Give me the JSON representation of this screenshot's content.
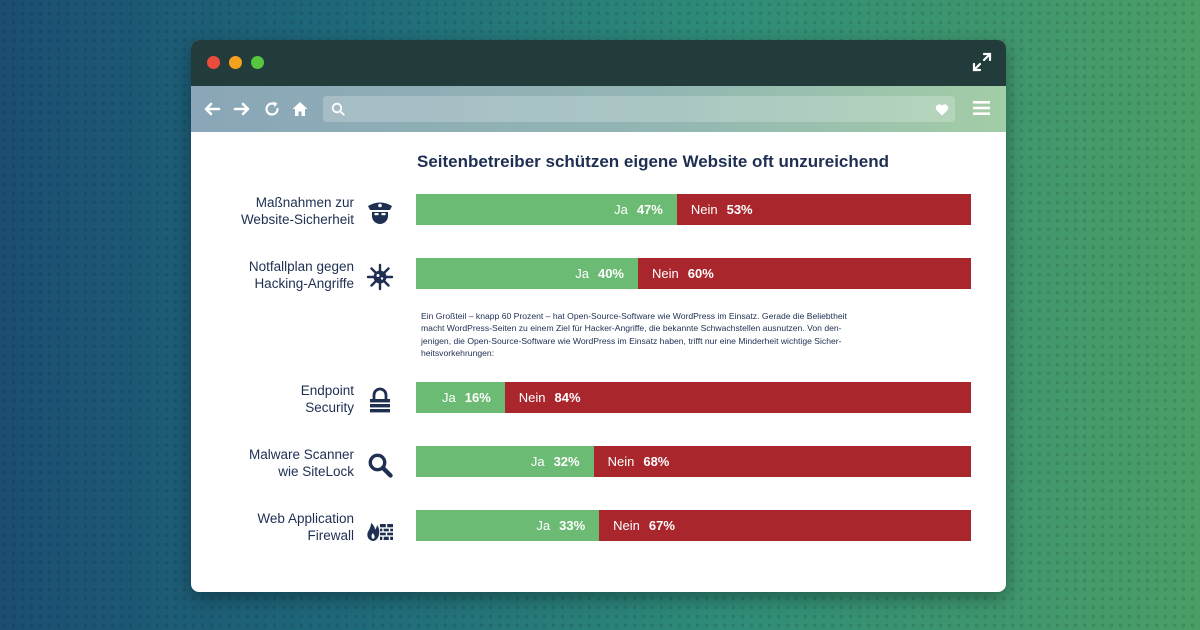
{
  "chart_data": {
    "type": "bar",
    "title": "Seitenbetreiber schützen eigene Website oft unzureichend",
    "categories": [
      "Maßnahmen zur Website-Sicherheit",
      "Notfallplan gegen Hacking-Angriffe",
      "Endpoint Security",
      "Malware Scanner wie SiteLock",
      "Web Application Firewall"
    ],
    "series": [
      {
        "name": "Ja",
        "values": [
          47,
          40,
          16,
          32,
          33
        ],
        "color": "#6cbb74"
      },
      {
        "name": "Nein",
        "values": [
          53,
          60,
          84,
          68,
          67
        ],
        "color": "#a9262d"
      }
    ],
    "unit": "%"
  },
  "rows": [
    {
      "label_1": "Maßnahmen zur",
      "label_2": "Website-Sicherheit",
      "icon": "police-officer-icon",
      "ja_label": "Ja",
      "ja_pct": "47%",
      "nein_label": "Nein",
      "nein_pct": "53%"
    },
    {
      "label_1": "Notfallplan gegen",
      "label_2": "Hacking-Angriffe",
      "icon": "virus-icon",
      "ja_label": "Ja",
      "ja_pct": "40%",
      "nein_label": "Nein",
      "nein_pct": "60%"
    },
    {
      "label_1": "Endpoint",
      "label_2": "Security",
      "icon": "padlock-icon",
      "ja_label": "Ja",
      "ja_pct": "16%",
      "nein_label": "Nein",
      "nein_pct": "84%"
    },
    {
      "label_1": "Malware Scanner",
      "label_2": "wie SiteLock",
      "icon": "magnifier-icon",
      "ja_label": "Ja",
      "ja_pct": "32%",
      "nein_label": "Nein",
      "nein_pct": "68%"
    },
    {
      "label_1": "Web Application",
      "label_2": "Firewall",
      "icon": "firewall-icon",
      "ja_label": "Ja",
      "ja_pct": "33%",
      "nein_label": "Nein",
      "nein_pct": "67%"
    }
  ],
  "note": {
    "line_1": "Ein Großteil – knapp 60 Prozent – hat Open-Source-Software wie WordPress im Einsatz. Gerade die Beliebtheit",
    "line_2": "macht WordPress-Seiten zu einem Ziel für Hacker-Angriffe, die bekannte Schwachstellen ausnutzen. Von den-",
    "line_3": "jenigen, die Open-Source-Software wie WordPress im Einsatz haben, trifft nur eine Minderheit wichtige Sicher-",
    "line_4": "heitsvorkehrungen:"
  },
  "browser": {
    "url_value": "",
    "icons": [
      "back-arrow-icon",
      "forward-arrow-icon",
      "reload-icon",
      "home-icon",
      "search-icon",
      "heart-icon",
      "menu-icon",
      "expand-icon"
    ]
  },
  "colors": {
    "ja": "#6cbb74",
    "nein": "#a9262d",
    "text": "#1e2f52"
  }
}
